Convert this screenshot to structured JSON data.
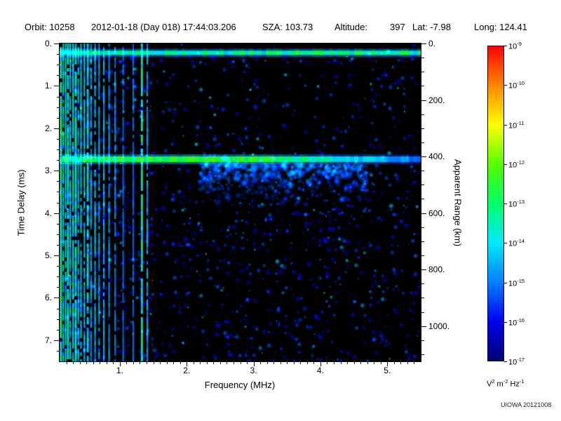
{
  "header": {
    "orbit": "Orbit: 10258",
    "datetime": "2012-01-18 (Day 018) 17:44:03.206",
    "sza": "SZA: 103.73",
    "altitude_label": "Altitude:",
    "altitude_value": "397",
    "lat": "Lat: -7.98",
    "long": "Long: 124.41"
  },
  "chart_data": {
    "type": "heatmap",
    "description": "Radar sounder ionogram: received spectral density vs frequency and time delay. Black background with blue speckle noise, dense vertical green echo stripes below ~1.45 MHz, a thin bright horizontal band near 0.22 ms, and a strong horizontal surface-reflection band near 2.73 ms (~410 km apparent range) fading from green to blue toward high frequency with a diffuse cyan wedge below it between ~2.2 and 4.7 MHz.",
    "xlabel": "Frequency (MHz)",
    "ylabel_left": "Time Delay (ms)",
    "ylabel_right": "Apparent Range (km)",
    "x_range_mhz": [
      0.1,
      5.5
    ],
    "time_delay_range_ms": [
      0,
      7.5
    ],
    "km_per_ms": 150,
    "x_ticks": [
      {
        "v": 1,
        "label": "1."
      },
      {
        "v": 2,
        "label": "2."
      },
      {
        "v": 3,
        "label": "3."
      },
      {
        "v": 4,
        "label": "4."
      },
      {
        "v": 5,
        "label": "5."
      }
    ],
    "y_ticks_left": [
      {
        "v": 0,
        "label": "0."
      },
      {
        "v": 1,
        "label": "1."
      },
      {
        "v": 2,
        "label": "2."
      },
      {
        "v": 3,
        "label": "3."
      },
      {
        "v": 4,
        "label": "4."
      },
      {
        "v": 5,
        "label": "5."
      },
      {
        "v": 6,
        "label": "6."
      },
      {
        "v": 7,
        "label": "7."
      }
    ],
    "y_ticks_right": [
      {
        "km": 0,
        "label": "0."
      },
      {
        "km": 200,
        "label": "200."
      },
      {
        "km": 400,
        "label": "400."
      },
      {
        "km": 600,
        "label": "600."
      },
      {
        "km": 800,
        "label": "800."
      },
      {
        "km": 1000,
        "label": "1000."
      }
    ],
    "x_minor_step": 0.1,
    "y_minor_step": 0.25,
    "right_minor_step_km": 50,
    "colormap_stops": [
      [
        0.0,
        "#000000"
      ],
      [
        0.1,
        "#000070"
      ],
      [
        0.25,
        "#0000ee"
      ],
      [
        0.42,
        "#0080ff"
      ],
      [
        0.55,
        "#00eaff"
      ],
      [
        0.68,
        "#00ff66"
      ],
      [
        0.78,
        "#54ff00"
      ],
      [
        0.88,
        "#ffff00"
      ],
      [
        0.94,
        "#ff8800"
      ],
      [
        1.0,
        "#ff0000"
      ]
    ],
    "colorbar": {
      "scale": "log",
      "max": "1e-9",
      "min": "1e-17",
      "tick_exponents": [
        "-9",
        "-10",
        "-11",
        "-12",
        "-13",
        "-14",
        "-15",
        "-16",
        "-17"
      ],
      "unit_parts": [
        [
          "V",
          "2"
        ],
        [
          "m",
          "-2"
        ],
        [
          "Hz",
          "-1"
        ]
      ],
      "colors_top_to_bottom": [
        "#ff0000",
        "#ff8800",
        "#ffff00",
        "#54ff00",
        "#00ff66",
        "#00eaff",
        "#0080ff",
        "#0000ee",
        "#000070"
      ]
    },
    "features": {
      "noise_seed": 20121008,
      "speckle_count": 2800,
      "surface_band_ms": 0.22,
      "main_band_ms": 2.73,
      "stripes": [
        {
          "f": 0.12,
          "w": 3,
          "i": 0.95
        },
        {
          "f": 0.155,
          "w": 2,
          "i": 0.7
        },
        {
          "f": 0.19,
          "w": 2,
          "i": 0.85
        },
        {
          "f": 0.225,
          "w": 3,
          "i": 0.8
        },
        {
          "f": 0.26,
          "w": 2,
          "i": 0.65
        },
        {
          "f": 0.3,
          "w": 2,
          "i": 0.8
        },
        {
          "f": 0.34,
          "w": 3,
          "i": 0.75
        },
        {
          "f": 0.38,
          "w": 2,
          "i": 0.6
        },
        {
          "f": 0.42,
          "w": 2,
          "i": 0.7
        },
        {
          "f": 0.47,
          "w": 2,
          "i": 0.65
        },
        {
          "f": 0.52,
          "w": 3,
          "i": 0.7
        },
        {
          "f": 0.57,
          "w": 2,
          "i": 0.55
        },
        {
          "f": 0.63,
          "w": 2,
          "i": 0.6
        },
        {
          "f": 0.69,
          "w": 2,
          "i": 0.5
        },
        {
          "f": 0.76,
          "w": 2,
          "i": 0.55
        },
        {
          "f": 0.84,
          "w": 2,
          "i": 0.45
        },
        {
          "f": 0.93,
          "w": 2,
          "i": 0.4
        },
        {
          "f": 1.05,
          "w": 2,
          "i": 0.3
        },
        {
          "f": 1.2,
          "w": 2,
          "i": 0.3
        },
        {
          "f": 1.33,
          "w": 3,
          "i": 0.85
        },
        {
          "f": 1.41,
          "w": 2,
          "i": 0.5
        }
      ],
      "wedge": {
        "f": [
          2.2,
          4.7
        ],
        "t": [
          2.85,
          3.95
        ]
      }
    }
  },
  "watermark": "UIOWA 20121008"
}
